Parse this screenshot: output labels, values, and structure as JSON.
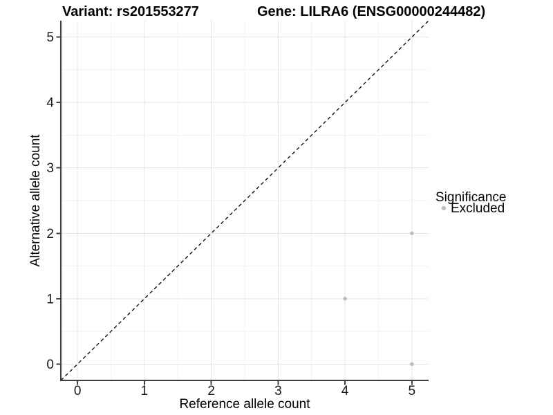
{
  "page": {
    "background_color": "#ffffff"
  },
  "header": {
    "variant_title": "Variant: rs201553277",
    "gene_title": "Gene: LILRA6 (ENSG00000244482)"
  },
  "chart_data": {
    "type": "scatter",
    "xlabel": "Reference allele count",
    "ylabel": "Alternative allele count",
    "xlim": [
      -0.25,
      5.25
    ],
    "ylim": [
      -0.25,
      5.25
    ],
    "x_ticks": [
      0,
      1,
      2,
      3,
      4,
      5
    ],
    "y_ticks": [
      0,
      1,
      2,
      3,
      4,
      5
    ],
    "grid": true,
    "minor_grid": true,
    "reference_line": {
      "kind": "identity",
      "from": [
        -0.25,
        -0.25
      ],
      "to": [
        5.25,
        5.25
      ],
      "style": "dashed",
      "color": "#000000"
    },
    "series": [
      {
        "name": "Excluded",
        "color": "#bebebe",
        "point_radius": 2.8,
        "points": [
          {
            "x": 4,
            "y": 1
          },
          {
            "x": 5,
            "y": 0
          },
          {
            "x": 5,
            "y": 2
          }
        ]
      }
    ],
    "legend": {
      "title": "Significance",
      "position": "right",
      "entries": [
        {
          "label": "Excluded",
          "color": "#bebebe"
        }
      ]
    },
    "colors": {
      "grid_major": "#e4e4e4",
      "grid_minor": "#f2f2f2",
      "axis_line": "#3f3f3f",
      "tick_mark": "#3f3f3f",
      "point": "#bebebe"
    }
  }
}
